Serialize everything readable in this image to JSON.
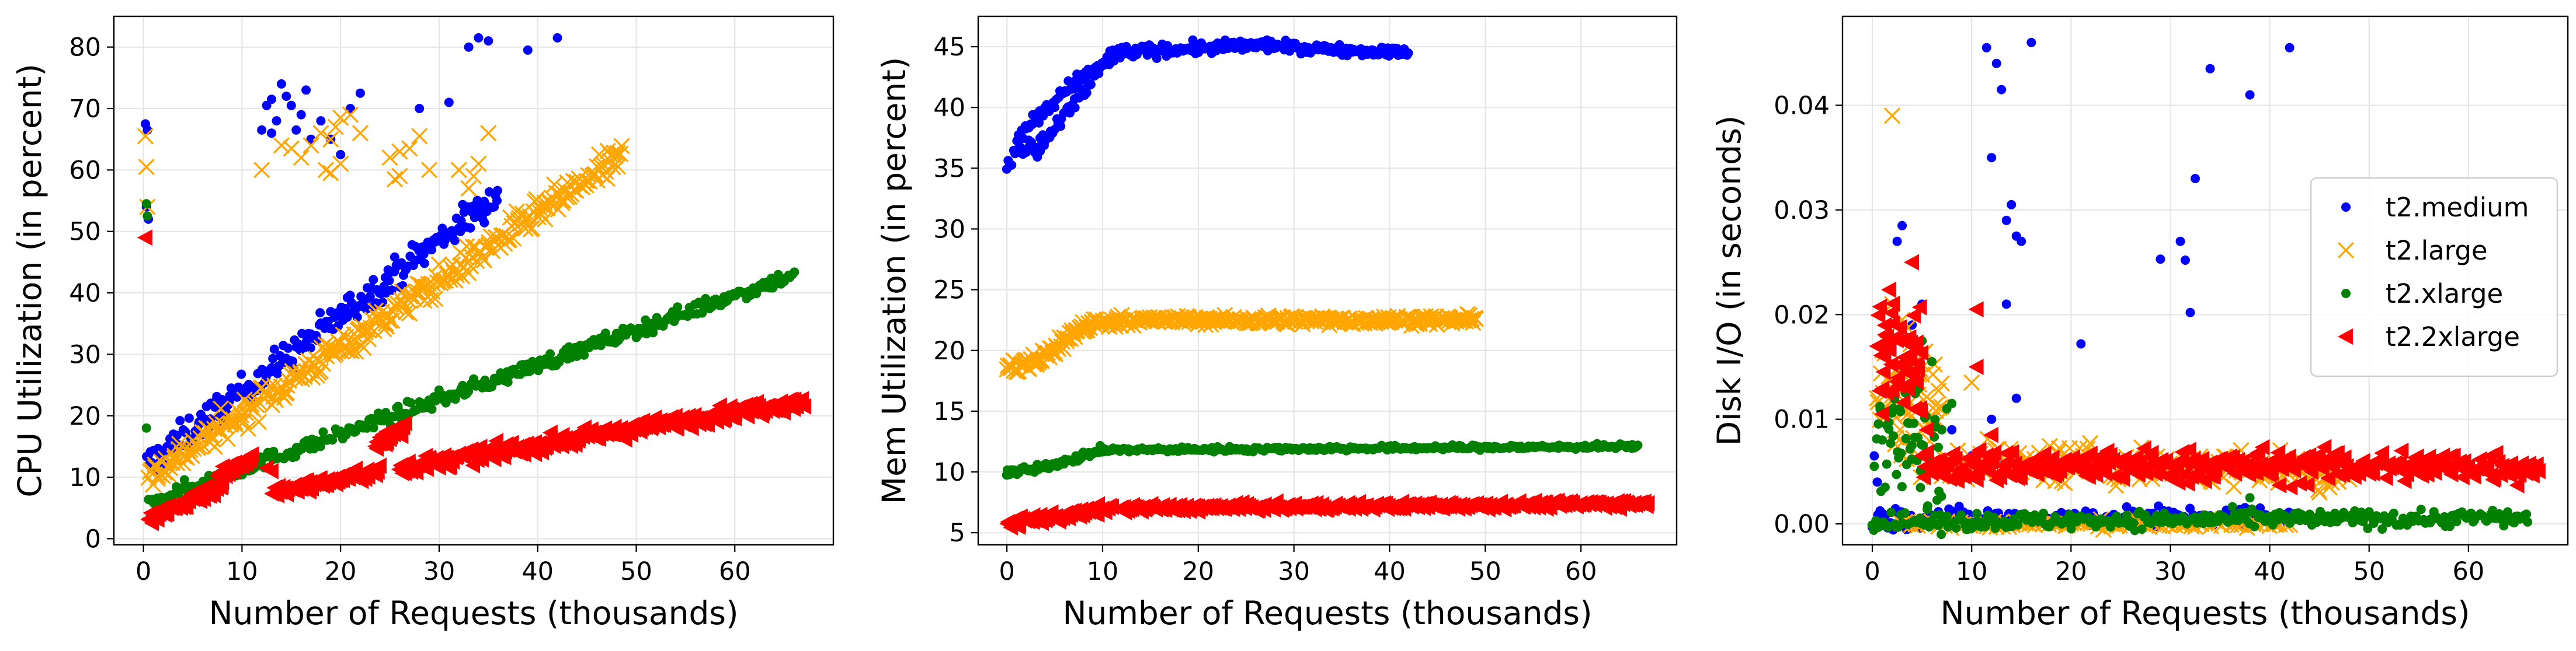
{
  "legend": {
    "placement": "center-right of third panel",
    "entries": [
      {
        "label": "t2.medium",
        "color": "#0000ff",
        "marker": "dot"
      },
      {
        "label": "t2.large",
        "color": "#ffa500",
        "marker": "x"
      },
      {
        "label": "t2.xlarge",
        "color": "#008000",
        "marker": "dot"
      },
      {
        "label": "t2.2xlarge",
        "color": "#ff0000",
        "marker": "triangle-left"
      }
    ]
  },
  "chart_data": [
    {
      "type": "scatter",
      "xlabel": "Number of Requests (thousands)",
      "ylabel": "CPU Utilization (in percent)",
      "xlim": [
        -3,
        70
      ],
      "ylim": [
        -1,
        85
      ],
      "xticks": [
        0,
        10,
        20,
        30,
        40,
        50,
        60
      ],
      "yticks": [
        0,
        10,
        20,
        30,
        40,
        50,
        60,
        70,
        80
      ],
      "grid": true,
      "series": [
        {
          "name": "t2.medium",
          "color": "#0000ff",
          "marker": "dot",
          "trend": {
            "x_start": 0.3,
            "x_end": 36,
            "y_start": 12,
            "y_end": 56,
            "jitter": 1.3,
            "count": 240
          },
          "points": [
            [
              0.2,
              67.5
            ],
            [
              0.4,
              66.5
            ],
            [
              0.3,
              54
            ],
            [
              0.5,
              52
            ],
            [
              12.5,
              70.5
            ],
            [
              13,
              71.5
            ],
            [
              13.5,
              68
            ],
            [
              14,
              74
            ],
            [
              14.5,
              72
            ],
            [
              15,
              70.5
            ],
            [
              15.5,
              66.5
            ],
            [
              16,
              69
            ],
            [
              17,
              65
            ],
            [
              13,
              66
            ],
            [
              12,
              66.5
            ],
            [
              19,
              65
            ],
            [
              20,
              62.5
            ],
            [
              21,
              70
            ],
            [
              22,
              72.5
            ],
            [
              18,
              68
            ],
            [
              31,
              71
            ],
            [
              34,
              81.5
            ],
            [
              33,
              80
            ],
            [
              35,
              81
            ],
            [
              39,
              79.5
            ],
            [
              42,
              81.5
            ],
            [
              28,
              70
            ],
            [
              16.5,
              73
            ]
          ]
        },
        {
          "name": "t2.large",
          "color": "#ffa500",
          "marker": "x",
          "trend": {
            "x_start": 0.5,
            "x_end": 48.5,
            "y_start": 10,
            "y_end": 62,
            "jitter": 1.2,
            "count": 320
          },
          "points": [
            [
              0.2,
              65.5
            ],
            [
              0.3,
              60.5
            ],
            [
              0.4,
              54
            ],
            [
              12,
              60
            ],
            [
              14,
              64
            ],
            [
              15,
              63.5
            ],
            [
              16,
              62
            ],
            [
              17,
              64
            ],
            [
              18,
              66
            ],
            [
              19,
              65
            ],
            [
              19.5,
              67
            ],
            [
              20,
              68.5
            ],
            [
              21,
              69
            ],
            [
              22,
              66
            ],
            [
              18.5,
              60
            ],
            [
              19,
              59.5
            ],
            [
              20,
              61
            ],
            [
              25,
              62
            ],
            [
              26,
              59
            ],
            [
              25.5,
              58.5
            ],
            [
              27,
              63.5
            ],
            [
              28,
              65.5
            ],
            [
              29,
              60
            ],
            [
              32,
              60
            ],
            [
              33,
              57
            ],
            [
              34,
              61
            ],
            [
              35,
              66
            ],
            [
              33.5,
              59
            ],
            [
              26,
              63
            ]
          ]
        },
        {
          "name": "t2.xlarge",
          "color": "#008000",
          "marker": "dot",
          "trend": {
            "x_start": 0.5,
            "x_end": 66,
            "y_start": 6,
            "y_end": 43,
            "jitter": 0.6,
            "count": 340
          },
          "points": [
            [
              0.3,
              54.5
            ],
            [
              0.4,
              52.5
            ],
            [
              0.3,
              18
            ]
          ]
        },
        {
          "name": "t2.2xlarge",
          "color": "#ff0000",
          "marker": "triangle-left",
          "segments": [
            {
              "x_start": 0.5,
              "x_end": 8,
              "y_start": 3,
              "y_end": 9,
              "jitter": 0.6,
              "count": 70
            },
            {
              "x_start": 7.5,
              "x_end": 11,
              "y_start": 10,
              "y_end": 13.5,
              "jitter": 0.6,
              "count": 30
            },
            {
              "x_start": 13,
              "x_end": 24,
              "y_start": 7.5,
              "y_end": 11,
              "jitter": 0.5,
              "count": 70
            },
            {
              "x_start": 23.5,
              "x_end": 26.5,
              "y_start": 15,
              "y_end": 18.5,
              "jitter": 0.8,
              "count": 30
            },
            {
              "x_start": 26,
              "x_end": 67,
              "y_start": 11.5,
              "y_end": 22.5,
              "jitter": 0.6,
              "count": 280
            }
          ],
          "points": [
            [
              0.2,
              49
            ],
            [
              12.5,
              11.5
            ],
            [
              13,
              11
            ]
          ]
        }
      ]
    },
    {
      "type": "scatter",
      "xlabel": "Number of Requests (thousands)",
      "ylabel": "Mem Utilization (in percent)",
      "xlim": [
        -3,
        70
      ],
      "ylim": [
        4,
        47.5
      ],
      "xticks": [
        0,
        10,
        20,
        30,
        40,
        50,
        60
      ],
      "yticks": [
        5,
        10,
        15,
        20,
        25,
        30,
        35,
        40,
        45
      ],
      "grid": true,
      "series": [
        {
          "name": "t2.medium",
          "color": "#0000ff",
          "marker": "dot",
          "segments": [
            {
              "x_start": 0,
              "x_end": 4,
              "y_start": 35.5,
              "y_end": 37.5,
              "jitter": 0.4,
              "count": 25
            },
            {
              "x_start": 1,
              "x_end": 7,
              "y_start": 37.5,
              "y_end": 42,
              "jitter": 0.3,
              "count": 35
            },
            {
              "x_start": 7,
              "x_end": 12,
              "y_start": 42,
              "y_end": 44.5,
              "jitter": 0.3,
              "count": 35
            },
            {
              "x_start": 3,
              "x_end": 11,
              "y_start": 36,
              "y_end": 44.5,
              "jitter": 0.3,
              "count": 45
            },
            {
              "x_start": 11,
              "x_end": 28,
              "y_start": 44.5,
              "y_end": 45.2,
              "jitter": 0.25,
              "count": 120
            },
            {
              "x_start": 28,
              "x_end": 42,
              "y_start": 45,
              "y_end": 44.5,
              "jitter": 0.2,
              "count": 90
            }
          ],
          "points": []
        },
        {
          "name": "t2.large",
          "color": "#ffa500",
          "marker": "x",
          "segments": [
            {
              "x_start": 0,
              "x_end": 3,
              "y_start": 18.5,
              "y_end": 19,
              "jitter": 0.35,
              "count": 25
            },
            {
              "x_start": 3,
              "x_end": 8,
              "y_start": 19,
              "y_end": 22,
              "jitter": 0.35,
              "count": 45
            },
            {
              "x_start": 8,
              "x_end": 12,
              "y_start": 22,
              "y_end": 22.5,
              "jitter": 0.25,
              "count": 30
            },
            {
              "x_start": 12,
              "x_end": 49,
              "y_start": 22.5,
              "y_end": 22.5,
              "jitter": 0.18,
              "count": 250
            }
          ],
          "points": []
        },
        {
          "name": "t2.xlarge",
          "color": "#008000",
          "marker": "dot",
          "segments": [
            {
              "x_start": 0,
              "x_end": 3,
              "y_start": 10,
              "y_end": 10.2,
              "jitter": 0.15,
              "count": 25
            },
            {
              "x_start": 3,
              "x_end": 10,
              "y_start": 10.2,
              "y_end": 11.8,
              "jitter": 0.15,
              "count": 50
            },
            {
              "x_start": 10,
              "x_end": 66,
              "y_start": 11.8,
              "y_end": 12.1,
              "jitter": 0.1,
              "count": 300
            }
          ],
          "points": []
        },
        {
          "name": "t2.2xlarge",
          "color": "#ff0000",
          "marker": "triangle-left",
          "segments": [
            {
              "x_start": 0,
              "x_end": 4,
              "y_start": 5.8,
              "y_end": 6.2,
              "jitter": 0.2,
              "count": 25
            },
            {
              "x_start": 4,
              "x_end": 11,
              "y_start": 6.2,
              "y_end": 7,
              "jitter": 0.2,
              "count": 45
            },
            {
              "x_start": 12,
              "x_end": 67,
              "y_start": 7,
              "y_end": 7.4,
              "jitter": 0.15,
              "count": 320
            }
          ],
          "points": []
        }
      ]
    },
    {
      "type": "scatter",
      "xlabel": "Number of Requests (thousands)",
      "ylabel": "Disk I/O (in seconds)",
      "xlim": [
        -3,
        70
      ],
      "ylim": [
        -0.002,
        0.0485
      ],
      "xticks": [
        0,
        10,
        20,
        30,
        40,
        50,
        60
      ],
      "yticks": [
        0.0,
        0.01,
        0.02,
        0.03,
        0.04
      ],
      "ytick_labels": [
        "0.00",
        "0.01",
        "0.02",
        "0.03",
        "0.04"
      ],
      "grid": true,
      "series": [
        {
          "name": "t2.medium",
          "color": "#0000ff",
          "marker": "dot",
          "segments": [
            {
              "x_start": 0,
              "x_end": 42,
              "y_start": 0.0005,
              "y_end": 0.0007,
              "jitter": 0.0005,
              "count": 160
            }
          ],
          "points": [
            [
              0.2,
              0.0065
            ],
            [
              0.5,
              0.004
            ],
            [
              2.5,
              0.027
            ],
            [
              3,
              0.0285
            ],
            [
              4,
              0.019
            ],
            [
              5,
              0.021
            ],
            [
              11.5,
              0.0455
            ],
            [
              12,
              0.035
            ],
            [
              12.5,
              0.044
            ],
            [
              13,
              0.0415
            ],
            [
              13.5,
              0.029
            ],
            [
              14,
              0.0305
            ],
            [
              14.5,
              0.0275
            ],
            [
              15,
              0.027
            ],
            [
              16,
              0.046
            ],
            [
              21,
              0.0172
            ],
            [
              29,
              0.0253
            ],
            [
              31,
              0.027
            ],
            [
              31.5,
              0.0252
            ],
            [
              32,
              0.0202
            ],
            [
              32.5,
              0.033
            ],
            [
              34,
              0.0435
            ],
            [
              38,
              0.041
            ],
            [
              42,
              0.0455
            ],
            [
              13.5,
              0.021
            ],
            [
              14.5,
              0.012
            ],
            [
              12,
              0.01
            ],
            [
              10,
              0.0065
            ],
            [
              8,
              0.009
            ]
          ]
        },
        {
          "name": "t2.large",
          "color": "#ffa500",
          "marker": "x",
          "segments": [
            {
              "x_start": 0.5,
              "x_end": 7,
              "y_start": 0.012,
              "y_end": 0.011,
              "jitter": 0.003,
              "count": 60
            },
            {
              "x_start": 7,
              "x_end": 48,
              "y_start": 0.006,
              "y_end": 0.005,
              "jitter": 0.0009,
              "count": 160
            },
            {
              "x_start": 3,
              "x_end": 42,
              "y_start": 0.0,
              "y_end": 0.0,
              "jitter": 0.0002,
              "count": 120
            }
          ],
          "points": [
            [
              2,
              0.039
            ],
            [
              2,
              0.021
            ],
            [
              3,
              0.0195
            ],
            [
              10,
              0.0135
            ],
            [
              45,
              0.003
            ],
            [
              46,
              0.0035
            ]
          ]
        },
        {
          "name": "t2.xlarge",
          "color": "#008000",
          "marker": "dot",
          "segments": [
            {
              "x_start": 0.5,
              "x_end": 7,
              "y_start": 0.01,
              "y_end": 0.006,
              "jitter": 0.003,
              "count": 60
            },
            {
              "x_start": 0,
              "x_end": 66,
              "y_start": 0.0002,
              "y_end": 0.0006,
              "jitter": 0.0004,
              "count": 320
            }
          ],
          "points": [
            [
              0.2,
              0.0055
            ],
            [
              5,
              0.0175
            ],
            [
              6,
              0.0155
            ],
            [
              7.5,
              0.011
            ],
            [
              8,
              0.0115
            ],
            [
              7,
              0.009
            ],
            [
              38,
              0.0025
            ]
          ]
        },
        {
          "name": "t2.2xlarge",
          "color": "#ff0000",
          "marker": "triangle-left",
          "segments": [
            {
              "x_start": 0.5,
              "x_end": 5,
              "y_start": 0.017,
              "y_end": 0.0155,
              "jitter": 0.0025,
              "count": 55
            },
            {
              "x_start": 5,
              "x_end": 67,
              "y_start": 0.0055,
              "y_end": 0.0055,
              "jitter": 0.0008,
              "count": 330
            }
          ],
          "points": [
            [
              4,
              0.025
            ],
            [
              10.5,
              0.0205
            ],
            [
              10.5,
              0.015
            ],
            [
              5.5,
              0.009
            ],
            [
              6,
              0.0055
            ],
            [
              12,
              0.0085
            ],
            [
              1,
              0.0105
            ],
            [
              1.5,
              0.0125
            ]
          ]
        }
      ]
    }
  ]
}
